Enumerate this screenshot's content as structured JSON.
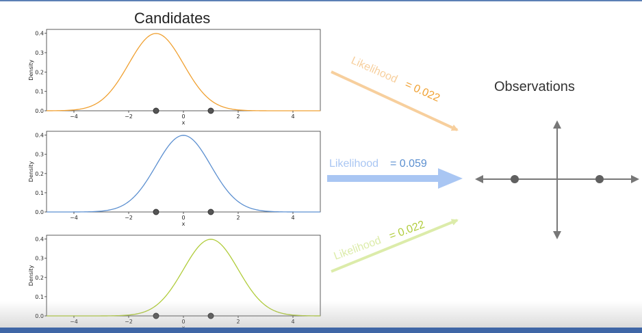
{
  "titles": {
    "candidates": "Candidates",
    "observations": "Observations"
  },
  "colors": {
    "orange": "#f0a030",
    "blue": "#5b8fd0",
    "green": "#b0cc3a",
    "orange_arrow": "#f7cf9d",
    "blue_arrow": "#a9c6f3",
    "green_arrow": "#dcecaa",
    "point": "#606060",
    "axis_arrow": "#777777"
  },
  "chart_data": [
    {
      "type": "line",
      "series": [
        {
          "mean": -1,
          "sd": 1
        }
      ],
      "xlabel": "x",
      "ylabel": "Density",
      "xlim": [
        -5,
        5
      ],
      "ylim": [
        0,
        0.42
      ],
      "xticks": [
        "−4",
        "−2",
        "0",
        "2",
        "4"
      ],
      "xtick_values": [
        -4,
        -2,
        0,
        2,
        4
      ],
      "yticks": [
        "0.0",
        "0.1",
        "0.2",
        "0.3",
        "0.4"
      ],
      "ytick_values": [
        0,
        0.1,
        0.2,
        0.3,
        0.4
      ],
      "observations": [
        -1,
        1
      ],
      "color": "orange"
    },
    {
      "type": "line",
      "series": [
        {
          "mean": 0,
          "sd": 1
        }
      ],
      "xlabel": "x",
      "ylabel": "Density",
      "xlim": [
        -5,
        5
      ],
      "ylim": [
        0,
        0.42
      ],
      "xticks": [
        "−4",
        "−2",
        "0",
        "2",
        "4"
      ],
      "xtick_values": [
        -4,
        -2,
        0,
        2,
        4
      ],
      "yticks": [
        "0.0",
        "0.1",
        "0.2",
        "0.3",
        "0.4"
      ],
      "ytick_values": [
        0,
        0.1,
        0.2,
        0.3,
        0.4
      ],
      "observations": [
        -1,
        1
      ],
      "color": "blue"
    },
    {
      "type": "line",
      "series": [
        {
          "mean": 1,
          "sd": 1
        }
      ],
      "xlabel": "x",
      "ylabel": "Density",
      "xlim": [
        -5,
        5
      ],
      "ylim": [
        0,
        0.42
      ],
      "xticks": [
        "−4",
        "−2",
        "0",
        "2",
        "4"
      ],
      "xtick_values": [
        -4,
        -2,
        0,
        2,
        4
      ],
      "yticks": [
        "0.0",
        "0.1",
        "0.2",
        "0.3",
        "0.4"
      ],
      "ytick_values": [
        0,
        0.1,
        0.2,
        0.3,
        0.4
      ],
      "observations": [
        -1,
        1
      ],
      "color": "green"
    }
  ],
  "likelihoods": [
    {
      "label": "Likelihood",
      "value": "= 0.022",
      "color": "orange"
    },
    {
      "label": "Likelihood",
      "value": "= 0.059",
      "color": "blue"
    },
    {
      "label": "Likelihood",
      "value": "= 0.022",
      "color": "green"
    }
  ],
  "observations_axis": {
    "points": [
      -1,
      1
    ]
  }
}
